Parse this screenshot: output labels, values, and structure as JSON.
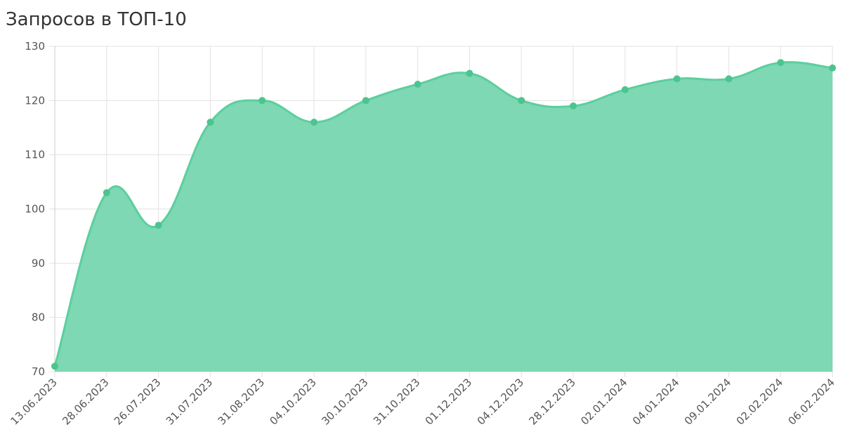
{
  "chart_data": {
    "type": "area",
    "title": "Запросов в ТОП-10",
    "categories": [
      "13.06.2023",
      "28.06.2023",
      "26.07.2023",
      "31.07.2023",
      "31.08.2023",
      "04.10.2023",
      "30.10.2023",
      "31.10.2023",
      "01.12.2023",
      "04.12.2023",
      "28.12.2023",
      "02.01.2024",
      "04.01.2024",
      "09.01.2024",
      "02.02.2024",
      "06.02.2024"
    ],
    "values": [
      71,
      103,
      97,
      116,
      120,
      116,
      120,
      123,
      125,
      120,
      119,
      122,
      124,
      124,
      127,
      126
    ],
    "color": "#5ccf9e",
    "fill": "#7dd8b3",
    "ylim": [
      70,
      130
    ],
    "yticks": [
      70,
      80,
      90,
      100,
      110,
      120,
      130
    ],
    "grid": true
  }
}
